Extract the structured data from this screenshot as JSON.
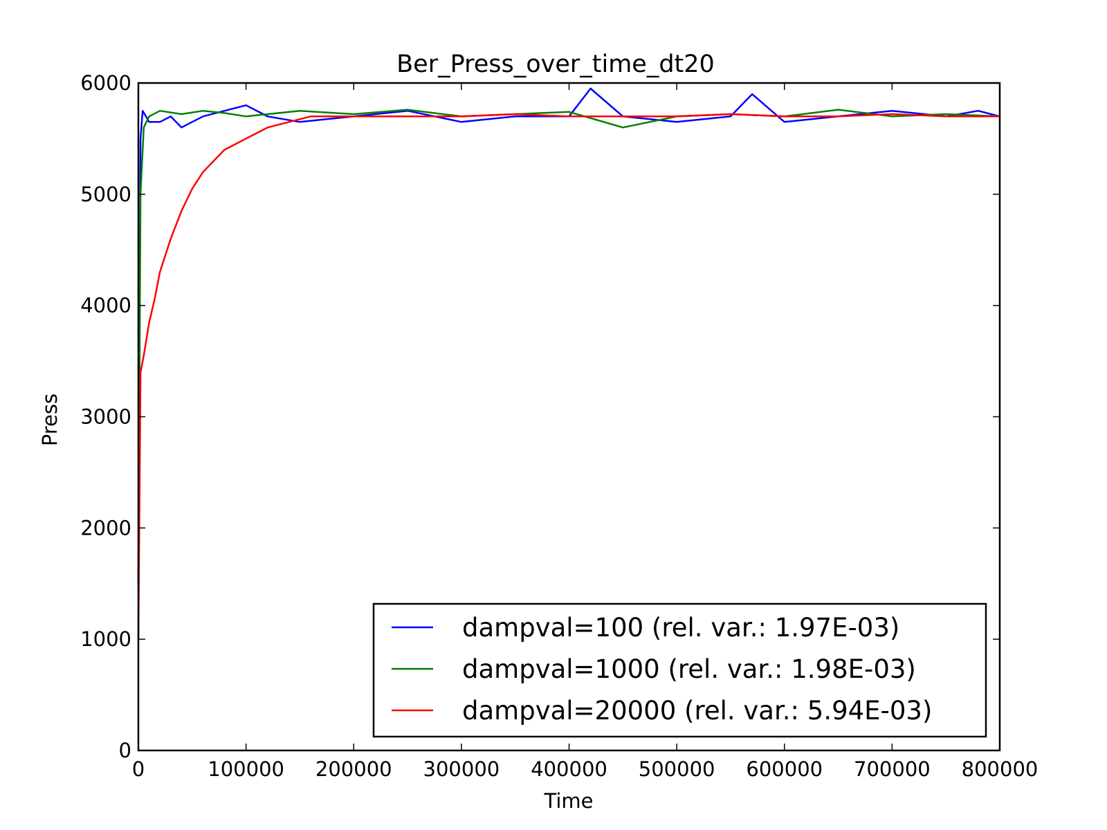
{
  "chart_data": {
    "type": "line",
    "title": "Ber_Press_over_time_dt20",
    "xlabel": "Time",
    "ylabel": "Press",
    "xlim": [
      0,
      800000
    ],
    "ylim": [
      0,
      6000
    ],
    "xticks": [
      0,
      100000,
      200000,
      300000,
      400000,
      500000,
      600000,
      700000,
      800000
    ],
    "xtick_labels": [
      "0",
      "100000",
      "200000",
      "300000",
      "400000",
      "500000",
      "600000",
      "700000",
      "800000"
    ],
    "yticks": [
      0,
      1000,
      2000,
      3000,
      4000,
      5000,
      6000
    ],
    "ytick_labels": [
      "0",
      "1000",
      "2000",
      "3000",
      "4000",
      "5000",
      "6000"
    ],
    "grid": false,
    "legend_position": "lower-right",
    "series": [
      {
        "name": "dampval=100 (rel. var.: 1.97E-03)",
        "color": "#0000ff",
        "x": [
          0,
          2000,
          4000,
          10000,
          20000,
          30000,
          40000,
          50000,
          60000,
          80000,
          100000,
          120000,
          150000,
          200000,
          250000,
          300000,
          350000,
          400000,
          420000,
          450000,
          500000,
          550000,
          570000,
          600000,
          650000,
          700000,
          750000,
          780000,
          800000
        ],
        "y": [
          1500,
          5500,
          5750,
          5650,
          5650,
          5700,
          5600,
          5650,
          5700,
          5750,
          5800,
          5700,
          5650,
          5700,
          5750,
          5650,
          5700,
          5700,
          5950,
          5700,
          5650,
          5700,
          5900,
          5650,
          5700,
          5750,
          5700,
          5750,
          5700
        ]
      },
      {
        "name": "dampval=1000 (rel. var.: 1.98E-03)",
        "color": "#008000",
        "x": [
          0,
          2000,
          5000,
          10000,
          20000,
          40000,
          60000,
          80000,
          100000,
          150000,
          200000,
          250000,
          300000,
          350000,
          400000,
          450000,
          500000,
          550000,
          600000,
          650000,
          700000,
          750000,
          800000
        ],
        "y": [
          1500,
          5000,
          5600,
          5700,
          5750,
          5720,
          5750,
          5730,
          5700,
          5750,
          5720,
          5760,
          5700,
          5720,
          5740,
          5600,
          5700,
          5720,
          5700,
          5760,
          5700,
          5720,
          5700
        ]
      },
      {
        "name": "dampval=20000 (rel. var.: 5.94E-03)",
        "color": "#ff0000",
        "x": [
          0,
          2000,
          5000,
          10000,
          15000,
          20000,
          25000,
          30000,
          40000,
          50000,
          60000,
          70000,
          80000,
          90000,
          100000,
          110000,
          120000,
          140000,
          160000,
          180000,
          200000,
          250000,
          300000,
          350000,
          400000,
          450000,
          500000,
          550000,
          600000,
          650000,
          700000,
          750000,
          800000
        ],
        "y": [
          1000,
          3400,
          3550,
          3850,
          4050,
          4300,
          4450,
          4600,
          4850,
          5050,
          5200,
          5300,
          5400,
          5450,
          5500,
          5550,
          5600,
          5650,
          5700,
          5700,
          5700,
          5700,
          5700,
          5720,
          5700,
          5700,
          5700,
          5720,
          5700,
          5700,
          5720,
          5700,
          5700
        ]
      }
    ]
  }
}
